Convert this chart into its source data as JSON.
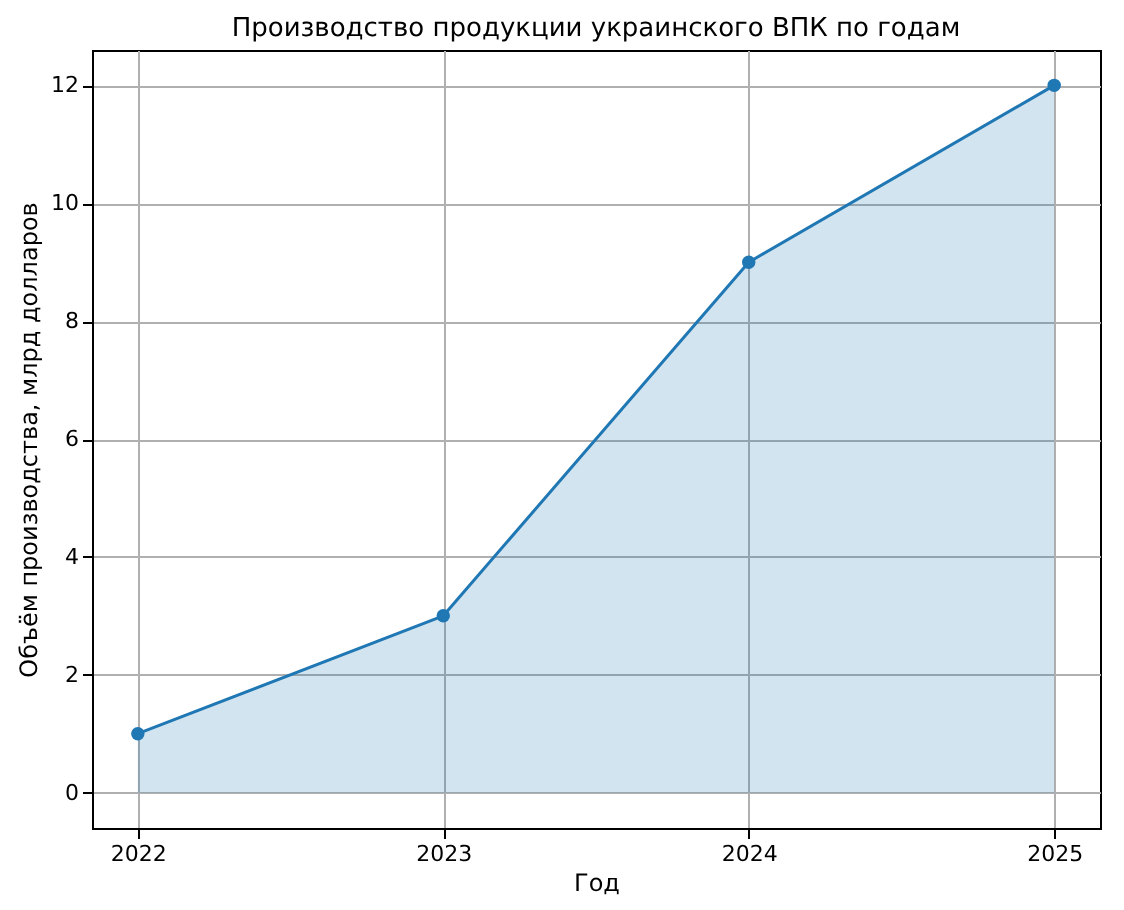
{
  "chart_data": {
    "type": "area",
    "title": "Производство продукции украинского ВПК по годам",
    "xlabel": "Год",
    "ylabel": "Объём производства, млрд долларов",
    "x": [
      2022,
      2023,
      2024,
      2025
    ],
    "series": [
      {
        "color": "#1f77b4",
        "values": [
          1,
          3,
          9,
          12
        ]
      }
    ],
    "xlim": [
      2021.85,
      2025.15
    ],
    "xticks": [
      2022,
      2023,
      2024,
      2025
    ],
    "ylim": [
      -0.6,
      12.6
    ],
    "yticks": [
      0,
      2,
      4,
      6,
      8,
      10,
      12
    ],
    "grid": true,
    "marker": "circle",
    "line_style": "solid"
  }
}
